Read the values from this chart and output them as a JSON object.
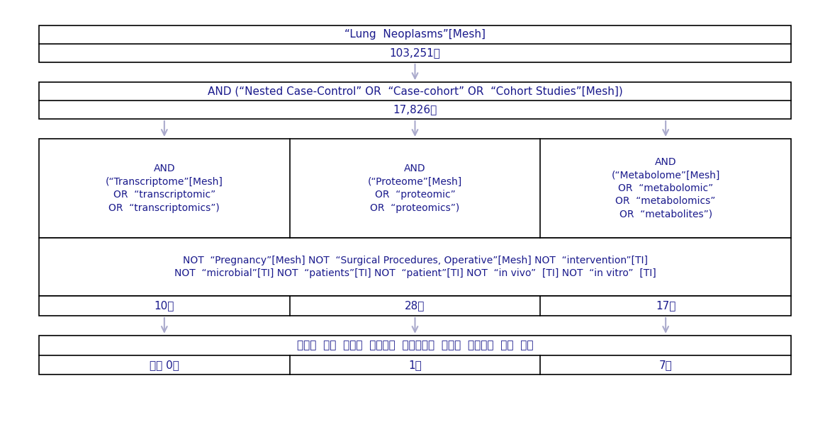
{
  "background_color": "#ffffff",
  "border_color": "#000000",
  "text_color": "#1a1a8c",
  "box1_line1": "“Lung  Neoplasms”[Mesh]",
  "box1_line2": "103,251건",
  "box2_line1": "AND (“Nested Case-Control” OR  “Case-cohort” OR  “Cohort Studies”[Mesh])",
  "box2_line2": "17,826건",
  "col1_text": "AND\n(“Transcriptome”[Mesh]\nOR  “transcriptomic”\nOR  “transcriptomics”)",
  "col2_text": "AND\n(“Proteome”[Mesh]\nOR  “proteomic”\nOR  “proteomics”)",
  "col3_text": "AND\n(“Metabolome”[Mesh]\nOR  “metabolomic”\nOR  “metabolomics”\nOR  “metabolites”)",
  "filter_line1": "NOT  “Pregnancy”[Mesh] NOT  “Surgical Procedures, Operative”[Mesh] NOT  “intervention”[TI]",
  "filter_line2": "NOT  “microbial”[TI] NOT  “patients”[TI] NOT  “patient”[TI] NOT  “in vivo”  [TI] NOT  “in vitro”  [TI]",
  "count1": "10건",
  "count2": "28건",
  "count3": "17건",
  "bottom_text": "초록과  논문  내용을  파악하여  시스템역학  내용과  부적합한  논문  제외",
  "final1": "최종 0건",
  "final2": "1건",
  "final3": "7건",
  "font_size_main": 11,
  "font_size_small": 10,
  "arrow_color": "#aaaacc",
  "lw": 1.2
}
